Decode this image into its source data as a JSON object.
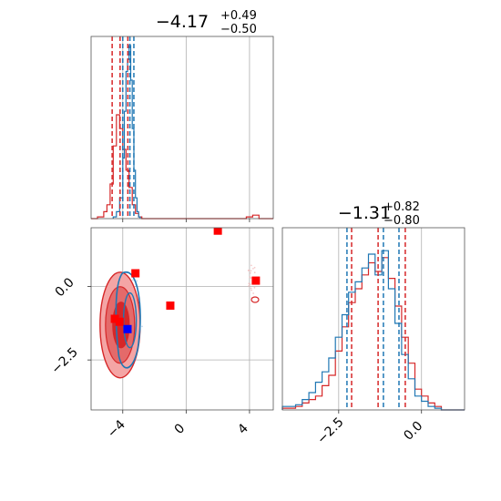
{
  "colors": {
    "red": "#d62728",
    "blue": "#1f77b4",
    "marker_red": "#ff0000",
    "marker_blue": "#0000ff",
    "grid": "#b0b0b0",
    "fill_light": "#f4a5a5",
    "fill_mid": "#e46a6a",
    "fill_dark": "#d62728"
  },
  "chart_data": [
    {
      "id": "hist-x",
      "type": "histogram",
      "title_main": "−4.17",
      "title_sup": "+0.49",
      "title_sub": "−0.50",
      "xlim": [
        -6,
        5.5
      ],
      "quantiles_red": [
        -4.67,
        -4.17,
        -3.68
      ],
      "quantiles_blue": [
        -4.0,
        -3.55,
        -3.3
      ],
      "series_red": {
        "edges": [
          -6.0,
          -5.6,
          -5.2,
          -5.0,
          -4.8,
          -4.6,
          -4.4,
          -4.2,
          -4.0,
          -3.8,
          -3.6,
          -3.4,
          -3.2,
          -3.0,
          -2.8,
          -2.6,
          3.8,
          4.2,
          4.6,
          5.5
        ],
        "values": [
          0.0,
          0.01,
          0.04,
          0.08,
          0.2,
          0.42,
          0.6,
          0.52,
          0.4,
          0.28,
          0.18,
          0.08,
          0.03,
          0.01,
          0.0,
          0.0,
          0.01,
          0.02,
          0.0
        ]
      },
      "series_blue": {
        "edges": [
          -4.6,
          -4.4,
          -4.2,
          -4.0,
          -3.9,
          -3.8,
          -3.7,
          -3.6,
          -3.5,
          -3.4,
          -3.3,
          -3.2,
          -3.1,
          -3.0,
          -2.9
        ],
        "values": [
          0.01,
          0.04,
          0.12,
          0.35,
          0.62,
          0.85,
          0.92,
          1.0,
          0.8,
          0.52,
          0.28,
          0.12,
          0.04,
          0.01
        ]
      }
    },
    {
      "id": "hist-y",
      "type": "histogram",
      "title_main": "−1.31",
      "title_sup": "+0.82",
      "title_sub": "−0.80",
      "xlim": [
        -4.2,
        1.3
      ],
      "x_ticks": [
        -2.5,
        0.0
      ],
      "x_tick_labels": [
        "−2.5",
        "0.0"
      ],
      "quantiles_red": [
        -2.11,
        -1.31,
        -0.49
      ],
      "quantiles_blue": [
        -2.25,
        -1.15,
        -0.68
      ],
      "series_red": {
        "edges": [
          -4.2,
          -3.8,
          -3.6,
          -3.4,
          -3.2,
          -3.0,
          -2.8,
          -2.6,
          -2.4,
          -2.2,
          -2.0,
          -1.8,
          -1.6,
          -1.4,
          -1.2,
          -1.0,
          -0.8,
          -0.6,
          -0.4,
          -0.2,
          0.0,
          0.2,
          0.4,
          0.6,
          1.3
        ],
        "values": [
          0.01,
          0.02,
          0.04,
          0.06,
          0.08,
          0.14,
          0.2,
          0.34,
          0.48,
          0.62,
          0.7,
          0.78,
          0.85,
          0.8,
          0.88,
          0.76,
          0.6,
          0.42,
          0.27,
          0.12,
          0.08,
          0.04,
          0.02,
          0.0
        ]
      },
      "series_blue": {
        "edges": [
          -4.2,
          -3.8,
          -3.6,
          -3.4,
          -3.2,
          -3.0,
          -2.8,
          -2.6,
          -2.4,
          -2.2,
          -2.0,
          -1.8,
          -1.6,
          -1.4,
          -1.2,
          -1.0,
          -0.8,
          -0.6,
          -0.4,
          -0.2,
          0.0,
          0.2,
          0.4,
          0.6,
          1.3
        ],
        "values": [
          0.02,
          0.03,
          0.06,
          0.1,
          0.16,
          0.22,
          0.3,
          0.42,
          0.55,
          0.68,
          0.74,
          0.82,
          0.9,
          0.78,
          0.92,
          0.7,
          0.5,
          0.32,
          0.18,
          0.08,
          0.05,
          0.02,
          0.01,
          0.0
        ]
      }
    },
    {
      "id": "scatter-2d",
      "type": "scatter",
      "xlim": [
        -6,
        5.5
      ],
      "ylim": [
        -4.2,
        2.0
      ],
      "x_ticks": [
        -4,
        0,
        4
      ],
      "x_tick_labels": [
        "−4",
        "0",
        "4"
      ],
      "y_ticks": [
        -2.5,
        0.0
      ],
      "y_tick_labels": [
        "−2.5",
        "0.0"
      ],
      "red_markers": [
        {
          "x": 2.0,
          "y": 1.9
        },
        {
          "x": 4.4,
          "y": 0.2
        },
        {
          "x": -3.2,
          "y": 0.45
        },
        {
          "x": -1.0,
          "y": -0.65
        },
        {
          "x": -4.5,
          "y": -1.1
        },
        {
          "x": -4.2,
          "y": -1.2
        }
      ],
      "blue_markers": [
        {
          "x": -3.7,
          "y": -1.45
        }
      ],
      "red_contour_center": {
        "x": -4.17,
        "y": -1.31
      },
      "blue_contour_center": {
        "x": -3.55,
        "y": -1.15
      }
    }
  ]
}
